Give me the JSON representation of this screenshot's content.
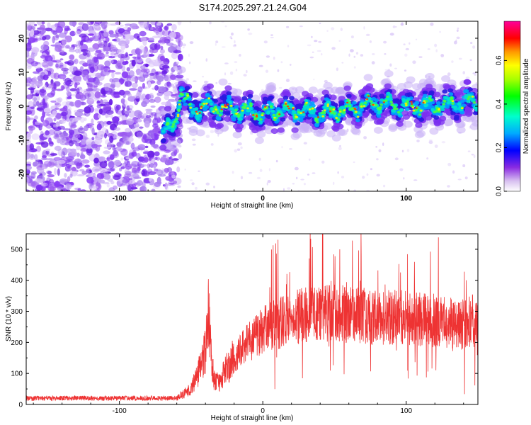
{
  "title": "S174.2025.297.21.24.G04",
  "chart_data": [
    {
      "type": "heatmap",
      "xlabel": "Height of straight line (km)",
      "ylabel": "Frequency (Hz)",
      "xlim": [
        -165,
        150
      ],
      "ylim": [
        -25,
        25
      ],
      "x_ticks": [
        -100,
        0,
        100
      ],
      "y_ticks": [
        -20,
        -10,
        0,
        10,
        20
      ],
      "x_tick_labels": [
        "-100",
        "0",
        "100"
      ],
      "y_tick_labels": [
        "-20",
        "-10",
        "0",
        "10",
        "20"
      ],
      "noise_region_end_x": -60,
      "ridge": {
        "description_points_x": [
          -70,
          -62,
          -57,
          -50,
          -40,
          -20,
          0,
          20,
          40,
          60,
          80,
          100,
          120,
          140,
          150
        ],
        "description_points_y": [
          -8,
          -6,
          4,
          -1,
          0,
          -1,
          -2,
          -1,
          -2,
          -1,
          1,
          0,
          0,
          1,
          2
        ]
      },
      "colorbar": {
        "label": "Normalized spectral amplitude",
        "range": [
          0.0,
          0.78
        ],
        "ticks": [
          0.0,
          0.2,
          0.4,
          0.6
        ],
        "tick_labels": [
          "0.0",
          "0.2",
          "0.4",
          "0.6"
        ]
      }
    },
    {
      "type": "line",
      "xlabel": "Height of straight line (km)",
      "ylabel": "SNR (10 * v/v)",
      "xlim": [
        -165,
        150
      ],
      "ylim": [
        0,
        550
      ],
      "x_ticks": [
        -100,
        0,
        100
      ],
      "y_ticks": [
        0,
        100,
        200,
        300,
        400,
        500
      ],
      "x_tick_labels": [
        "-100",
        "0",
        "100"
      ],
      "y_tick_labels": [
        "0",
        "100",
        "200",
        "300",
        "400",
        "500"
      ],
      "series": [
        {
          "name": "SNR",
          "color": "#ee3333",
          "trend_x": [
            -165,
            -60,
            -50,
            -45,
            -40,
            -38,
            -36,
            -34,
            -30,
            -25,
            -20,
            -10,
            0,
            20,
            40,
            60,
            80,
            100,
            120,
            150
          ],
          "trend_y": [
            20,
            20,
            50,
            100,
            180,
            300,
            150,
            80,
            70,
            120,
            150,
            200,
            240,
            280,
            300,
            290,
            280,
            280,
            270,
            250
          ]
        }
      ]
    }
  ],
  "colors": {
    "line": "#ee3333",
    "axis": "#000000"
  }
}
